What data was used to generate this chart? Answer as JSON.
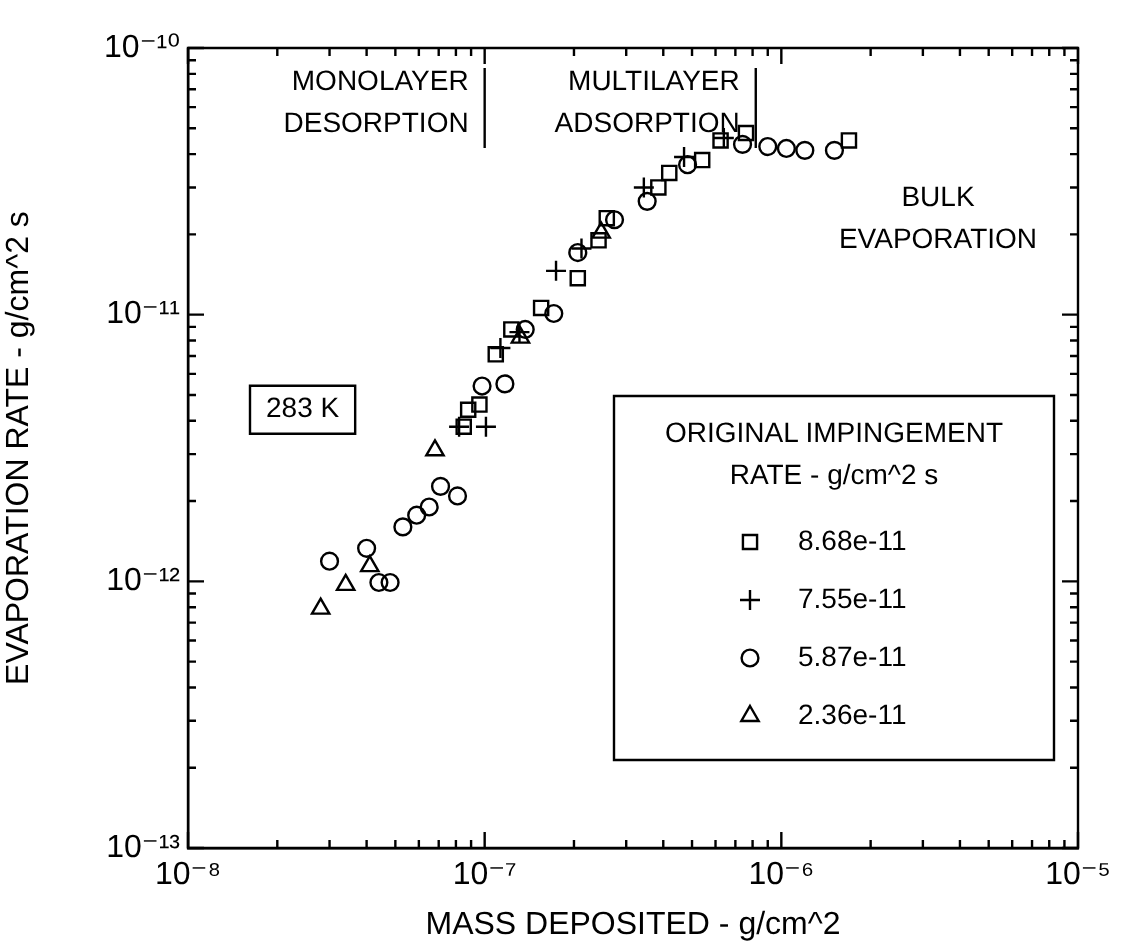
{
  "chart_data": {
    "type": "scatter",
    "xlabel": "MASS DEPOSITED - g/cm^2",
    "ylabel": "EVAPORATION RATE - g/cm^2 s",
    "legend_title": "ORIGINAL IMPINGEMENT RATE - g/cm^2 s",
    "legend": "bottom right",
    "log": "xy",
    "grid": false,
    "xlim": [
      1e-08,
      1e-05
    ],
    "ylim": [
      1e-13,
      1e-10
    ],
    "xticks": [
      {
        "value": 1e-08,
        "label": "10⁻⁸"
      },
      {
        "value": 2e-08,
        "label": null
      },
      {
        "value": 3e-08,
        "label": null
      },
      {
        "value": 4e-08,
        "label": null
      },
      {
        "value": 5e-08,
        "label": null
      },
      {
        "value": 6e-08,
        "label": null
      },
      {
        "value": 7e-08,
        "label": null
      },
      {
        "value": 8e-08,
        "label": null
      },
      {
        "value": 9e-08,
        "label": null
      },
      {
        "value": 1e-07,
        "label": "10⁻⁷"
      },
      {
        "value": 2e-07,
        "label": null
      },
      {
        "value": 3e-07,
        "label": null
      },
      {
        "value": 4e-07,
        "label": null
      },
      {
        "value": 5e-07,
        "label": null
      },
      {
        "value": 6e-07,
        "label": null
      },
      {
        "value": 7e-07,
        "label": null
      },
      {
        "value": 8e-07,
        "label": null
      },
      {
        "value": 9e-07,
        "label": null
      },
      {
        "value": 1e-06,
        "label": "10⁻⁶"
      },
      {
        "value": 2e-06,
        "label": null
      },
      {
        "value": 3e-06,
        "label": null
      },
      {
        "value": 4e-06,
        "label": null
      },
      {
        "value": 5e-06,
        "label": null
      },
      {
        "value": 6e-06,
        "label": null
      },
      {
        "value": 7e-06,
        "label": null
      },
      {
        "value": 8e-06,
        "label": null
      },
      {
        "value": 9e-06,
        "label": null
      },
      {
        "value": 1e-05,
        "label": "10⁻⁵"
      }
    ],
    "yticks": [
      {
        "value": 1e-13,
        "label": "10⁻¹³"
      },
      {
        "value": 2e-13,
        "label": null
      },
      {
        "value": 3e-13,
        "label": null
      },
      {
        "value": 4e-13,
        "label": null
      },
      {
        "value": 5e-13,
        "label": null
      },
      {
        "value": 6e-13,
        "label": null
      },
      {
        "value": 7e-13,
        "label": null
      },
      {
        "value": 8e-13,
        "label": null
      },
      {
        "value": 9e-13,
        "label": null
      },
      {
        "value": 1e-12,
        "label": "10⁻¹²"
      },
      {
        "value": 2e-12,
        "label": null
      },
      {
        "value": 3e-12,
        "label": null
      },
      {
        "value": 4e-12,
        "label": null
      },
      {
        "value": 5e-12,
        "label": null
      },
      {
        "value": 6e-12,
        "label": null
      },
      {
        "value": 7e-12,
        "label": null
      },
      {
        "value": 8e-12,
        "label": null
      },
      {
        "value": 9e-12,
        "label": null
      },
      {
        "value": 1e-11,
        "label": "10⁻¹¹"
      },
      {
        "value": 2e-11,
        "label": null
      },
      {
        "value": 3e-11,
        "label": null
      },
      {
        "value": 4e-11,
        "label": null
      },
      {
        "value": 5e-11,
        "label": null
      },
      {
        "value": 6e-11,
        "label": null
      },
      {
        "value": 7e-11,
        "label": null
      },
      {
        "value": 8e-11,
        "label": null
      },
      {
        "value": 9e-11,
        "label": null
      },
      {
        "value": 1e-10,
        "label": "10⁻¹⁰"
      }
    ],
    "series": [
      {
        "name": "8.68e-11",
        "color": "#000000",
        "marker": "square",
        "x": [
          8.8e-08,
          8.5e-08,
          9.6e-08,
          1.09e-07,
          1.23e-07,
          1.55e-07,
          2.06e-07,
          2.42e-07,
          2.58e-07,
          3.85e-07,
          4.19e-07,
          5.41e-07,
          6.24e-07,
          7.6e-07,
          1.69e-06
        ],
        "values": [
          4.4e-12,
          3.8e-12,
          4.6e-12,
          7.1e-12,
          8.8e-12,
          1.06e-11,
          1.37e-11,
          1.9e-11,
          2.3e-11,
          3e-11,
          3.4e-11,
          3.8e-11,
          4.5e-11,
          4.8e-11,
          4.5e-11
        ]
      },
      {
        "name": "7.55e-11",
        "color": "#000000",
        "marker": "cross",
        "x": [
          8.2e-08,
          1.01e-07,
          1.13e-07,
          1.31e-07,
          1.74e-07,
          2.12e-07,
          3.44e-07,
          4.7e-07,
          6.4e-07
        ],
        "values": [
          3.8e-12,
          3.8e-12,
          7.5e-12,
          8.6e-12,
          1.46e-11,
          1.77e-11,
          3e-11,
          3.9e-11,
          4.6e-11
        ]
      },
      {
        "name": "5.87e-11",
        "color": "#000000",
        "marker": "circle",
        "x": [
          3e-08,
          4e-08,
          4.4e-08,
          4.8e-08,
          5.3e-08,
          5.9e-08,
          6.5e-08,
          7.1e-08,
          8.1e-08,
          9.8e-08,
          1.17e-07,
          1.37e-07,
          1.71e-07,
          2.06e-07,
          2.74e-07,
          3.53e-07,
          4.83e-07,
          7.4e-07,
          9e-07,
          1.04e-06,
          1.2e-06,
          1.51e-06
        ],
        "values": [
          1.19e-12,
          1.33e-12,
          9.9e-13,
          9.9e-13,
          1.6e-12,
          1.77e-12,
          1.9e-12,
          2.27e-12,
          2.09e-12,
          5.4e-12,
          5.5e-12,
          8.8e-12,
          1.01e-11,
          1.71e-11,
          2.27e-11,
          2.66e-11,
          3.65e-11,
          4.35e-11,
          4.27e-11,
          4.2e-11,
          4.13e-11,
          4.13e-11
        ]
      },
      {
        "name": "2.36e-11",
        "color": "#000000",
        "marker": "triangle",
        "x": [
          2.8e-08,
          3.4e-08,
          4.1e-08,
          6.8e-08,
          1.32e-07,
          2.47e-07
        ],
        "values": [
          7.9e-13,
          9.7e-13,
          1.14e-12,
          3.1e-12,
          8.2e-12,
          2.03e-11
        ]
      }
    ],
    "ref_lines": [
      {
        "axis": "x",
        "value": 1e-07,
        "label": "MONOLAYER DESORPTION"
      },
      {
        "axis": "x",
        "value": 8.2e-07,
        "label": "MULTILAYER ADSORPTION"
      }
    ],
    "annotations": [
      "283 K",
      "BULK EVAPORATION"
    ]
  }
}
